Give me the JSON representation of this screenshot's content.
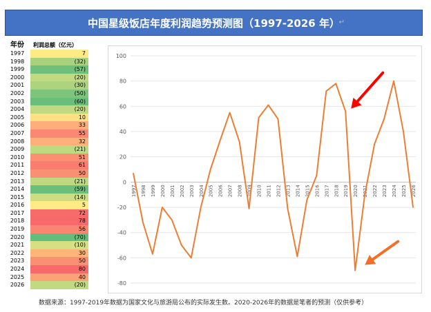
{
  "title": "中国星级饭店年度利润趋势预测图（1997-2026 年）",
  "return_glyph": "↵",
  "table": {
    "header_year": "年份",
    "header_profit": "利润总额（亿元）",
    "rows": [
      {
        "year": "1997",
        "display": "7",
        "color": "#FFEB84"
      },
      {
        "year": "1998",
        "display": "(32)",
        "color": "#A9D27F"
      },
      {
        "year": "1999",
        "display": "(57)",
        "color": "#6EC07A"
      },
      {
        "year": "2000",
        "display": "(20)",
        "color": "#C1DA81"
      },
      {
        "year": "2001",
        "display": "(30)",
        "color": "#ADD37F"
      },
      {
        "year": "2002",
        "display": "(50)",
        "color": "#7DC47C"
      },
      {
        "year": "2003",
        "display": "(60)",
        "color": "#69BE7A"
      },
      {
        "year": "2004",
        "display": "(20)",
        "color": "#C1DA81"
      },
      {
        "year": "2005",
        "display": "10",
        "color": "#FFE183"
      },
      {
        "year": "2006",
        "display": "33",
        "color": "#FDAE7A"
      },
      {
        "year": "2007",
        "display": "55",
        "color": "#FA8872"
      },
      {
        "year": "2008",
        "display": "32",
        "color": "#FDB07A"
      },
      {
        "year": "2009",
        "display": "(21)",
        "color": "#BFD981"
      },
      {
        "year": "2010",
        "display": "51",
        "color": "#FA8F73"
      },
      {
        "year": "2011",
        "display": "61",
        "color": "#F97E70"
      },
      {
        "year": "2012",
        "display": "50",
        "color": "#FA9073"
      },
      {
        "year": "2013",
        "display": "(21)",
        "color": "#BFD981"
      },
      {
        "year": "2014",
        "display": "(59)",
        "color": "#6BBF7A"
      },
      {
        "year": "2015",
        "display": "(14)",
        "color": "#CEDD82"
      },
      {
        "year": "2016",
        "display": "5",
        "color": "#FFEB84"
      },
      {
        "year": "2017",
        "display": "72",
        "color": "#F86B6B"
      },
      {
        "year": "2018",
        "display": "78",
        "color": "#F8696B"
      },
      {
        "year": "2019",
        "display": "56",
        "color": "#FA8672"
      },
      {
        "year": "2020",
        "display": "(70)",
        "color": "#63BE7B"
      },
      {
        "year": "2021",
        "display": "(10)",
        "color": "#D6E082"
      },
      {
        "year": "2022",
        "display": "30",
        "color": "#FDB57A"
      },
      {
        "year": "2023",
        "display": "50",
        "color": "#FA9073"
      },
      {
        "year": "2024",
        "display": "80",
        "color": "#F8696B"
      },
      {
        "year": "2025",
        "display": "40",
        "color": "#FBA277"
      },
      {
        "year": "2026",
        "display": "(20)",
        "color": "#C1DA81"
      }
    ]
  },
  "chart_data": {
    "type": "line",
    "x": [
      "1997",
      "1998",
      "1999",
      "2000",
      "2001",
      "2002",
      "2003",
      "2004",
      "2005",
      "2006",
      "2007",
      "2008",
      "2009",
      "2010",
      "2011",
      "2012",
      "2013",
      "2014",
      "2015",
      "2016",
      "2017",
      "2018",
      "2019",
      "2020",
      "2021",
      "2022",
      "2023",
      "2024",
      "2025",
      "2026"
    ],
    "series": [
      {
        "values": [
          7,
          -32,
          -57,
          -20,
          -30,
          -50,
          -60,
          -20,
          10,
          33,
          55,
          32,
          -21,
          51,
          61,
          50,
          -21,
          -59,
          -14,
          5,
          72,
          78,
          56,
          -70,
          -10,
          30,
          50,
          80,
          40,
          -20
        ]
      }
    ],
    "ylim": [
      -80,
      100
    ],
    "yticks": [
      "100",
      "80",
      "60",
      "40",
      "20",
      "0",
      "-20",
      "-40",
      "-60",
      "-80"
    ],
    "line_color": "#ED7D31",
    "grid": true,
    "annotations": [
      {
        "kind": "arrow",
        "color": "#FF0000",
        "points_to": "2019"
      },
      {
        "kind": "arrow",
        "color": "#F07028",
        "points_to": "2020"
      }
    ]
  },
  "source": "数据来源：1997-2019年数据为国家文化与旅游局公布的实际发生数。2020-2026年的数据是笔者的预测（仅供参考）"
}
